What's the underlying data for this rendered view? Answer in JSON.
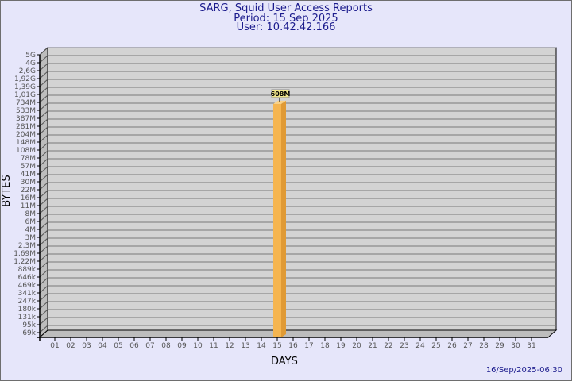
{
  "chart_data": {
    "type": "bar",
    "title": "SARG, Squid User Access Reports",
    "subtitle": [
      "Period: 15 Sep 2025",
      "User: 10.42.42.166"
    ],
    "xlabel": "DAYS",
    "ylabel": "BYTES",
    "y_scale": "log",
    "y_tick_labels": [
      "5G",
      "4G",
      "2,6G",
      "1,92G",
      "1,39G",
      "1,01G",
      "734M",
      "533M",
      "387M",
      "281M",
      "204M",
      "148M",
      "108M",
      "78M",
      "57M",
      "41M",
      "30M",
      "22M",
      "16M",
      "11M",
      "8M",
      "6M",
      "4M",
      "3M",
      "2,3M",
      "1,69M",
      "1,22M",
      "889k",
      "646k",
      "469k",
      "341k",
      "247k",
      "180k",
      "131k",
      "95k",
      "69k"
    ],
    "y_tick_values": [
      5000000000,
      4000000000,
      2600000000,
      1920000000,
      1390000000,
      1010000000,
      734000000,
      533000000,
      387000000,
      281000000,
      204000000,
      148000000,
      108000000,
      78000000,
      57000000,
      41000000,
      30000000,
      22000000,
      16000000,
      11000000,
      8000000,
      6000000,
      4000000,
      3000000,
      2300000,
      1690000,
      1220000,
      889000,
      646000,
      469000,
      341000,
      247000,
      180000,
      131000,
      95000,
      69000
    ],
    "categories": [
      "01",
      "02",
      "03",
      "04",
      "05",
      "06",
      "07",
      "08",
      "09",
      "10",
      "11",
      "12",
      "13",
      "14",
      "15",
      "16",
      "17",
      "18",
      "19",
      "20",
      "21",
      "22",
      "23",
      "24",
      "25",
      "26",
      "27",
      "28",
      "29",
      "30",
      "31"
    ],
    "values": [
      0,
      0,
      0,
      0,
      0,
      0,
      0,
      0,
      0,
      0,
      0,
      0,
      0,
      0,
      608000000,
      0,
      0,
      0,
      0,
      0,
      0,
      0,
      0,
      0,
      0,
      0,
      0,
      0,
      0,
      0,
      0
    ],
    "data_labels": {
      "15": "608M"
    },
    "grid": true,
    "colors": {
      "background": "#e6e6fa",
      "plot": "#d3d3d3",
      "bar": "#f5b550",
      "bar_side": "#e09a35",
      "bar_top": "#fcd283",
      "text": "#1a1a8c",
      "label_box": "#f0e68c"
    }
  },
  "footer": {
    "timestamp": "16/Sep/2025-06:30"
  }
}
